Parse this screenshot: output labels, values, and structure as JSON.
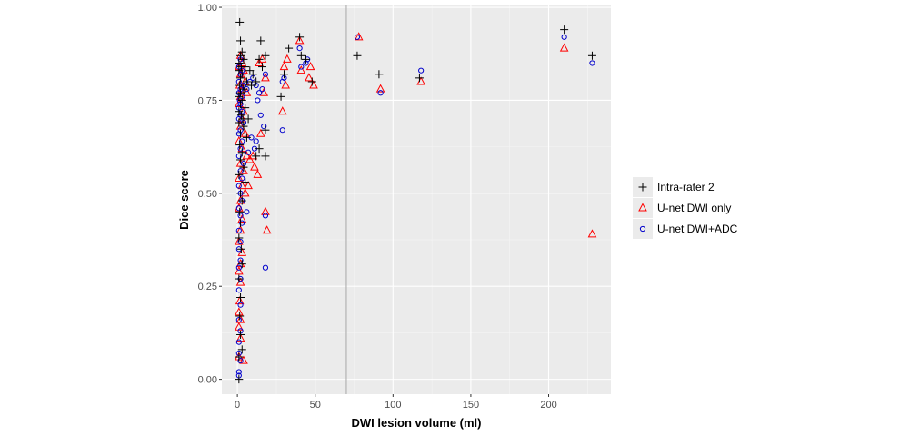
{
  "chart_data": {
    "type": "scatter",
    "title": "",
    "xlabel": "DWI lesion volume (ml)",
    "ylabel": "Dice score",
    "xlim": [
      -10,
      240
    ],
    "ylim": [
      -0.04,
      1.005
    ],
    "xticks": [
      0,
      50,
      100,
      150,
      200
    ],
    "yticks": [
      0.0,
      0.25,
      0.5,
      0.75,
      1.0
    ],
    "xtick_labels": [
      "0",
      "50",
      "100",
      "150",
      "200"
    ],
    "ytick_labels": [
      "0.00",
      "0.25",
      "0.50",
      "0.75",
      "1.00"
    ],
    "grid": true,
    "reference_line_x": 70,
    "legend_position": "right",
    "series": [
      {
        "name": "Intra-rater 2",
        "marker": "plus",
        "color": "#000000",
        "points": [
          [
            1.5,
            0.96
          ],
          [
            2,
            0.91
          ],
          [
            3,
            0.88
          ],
          [
            2,
            0.87
          ],
          [
            4,
            0.86
          ],
          [
            1,
            0.85
          ],
          [
            2.5,
            0.84
          ],
          [
            5,
            0.84
          ],
          [
            1,
            0.83
          ],
          [
            3,
            0.82
          ],
          [
            2,
            0.81
          ],
          [
            6,
            0.8
          ],
          [
            1.5,
            0.79
          ],
          [
            4,
            0.78
          ],
          [
            2,
            0.77
          ],
          [
            1,
            0.76
          ],
          [
            3,
            0.75
          ],
          [
            2,
            0.74
          ],
          [
            5,
            0.73
          ],
          [
            1,
            0.72
          ],
          [
            2.5,
            0.71
          ],
          [
            3.5,
            0.7
          ],
          [
            1,
            0.69
          ],
          [
            4,
            0.68
          ],
          [
            2,
            0.66
          ],
          [
            6,
            0.65
          ],
          [
            1.5,
            0.63
          ],
          [
            3,
            0.61
          ],
          [
            2,
            0.59
          ],
          [
            4,
            0.57
          ],
          [
            1,
            0.55
          ],
          [
            5,
            0.53
          ],
          [
            2,
            0.5
          ],
          [
            3,
            0.48
          ],
          [
            1.5,
            0.45
          ],
          [
            2,
            0.42
          ],
          [
            1,
            0.38
          ],
          [
            2.5,
            0.35
          ],
          [
            3,
            0.31
          ],
          [
            1,
            0.27
          ],
          [
            2,
            0.22
          ],
          [
            1.5,
            0.17
          ],
          [
            2,
            0.12
          ],
          [
            1,
            0.06
          ],
          [
            3,
            0.08
          ],
          [
            1,
            0.0
          ],
          [
            15,
            0.91
          ],
          [
            18,
            0.87
          ],
          [
            14,
            0.86
          ],
          [
            16,
            0.84
          ],
          [
            12,
            0.8
          ],
          [
            18,
            0.67
          ],
          [
            14,
            0.62
          ],
          [
            12,
            0.6
          ],
          [
            18,
            0.6
          ],
          [
            8,
            0.83
          ],
          [
            10,
            0.82
          ],
          [
            9,
            0.79
          ],
          [
            7,
            0.7
          ],
          [
            33,
            0.89
          ],
          [
            30,
            0.82
          ],
          [
            28,
            0.76
          ],
          [
            40,
            0.92
          ],
          [
            44,
            0.86
          ],
          [
            41,
            0.87
          ],
          [
            48,
            0.8
          ],
          [
            77,
            0.87
          ],
          [
            91,
            0.82
          ],
          [
            117,
            0.81
          ],
          [
            210,
            0.94
          ],
          [
            228,
            0.87
          ]
        ]
      },
      {
        "name": "U-net DWI only",
        "marker": "triangle",
        "color": "#ff0000",
        "points": [
          [
            2,
            0.87
          ],
          [
            3,
            0.85
          ],
          [
            1,
            0.84
          ],
          [
            4,
            0.83
          ],
          [
            2,
            0.82
          ],
          [
            5,
            0.8
          ],
          [
            1.5,
            0.79
          ],
          [
            3,
            0.78
          ],
          [
            6,
            0.77
          ],
          [
            2,
            0.76
          ],
          [
            1,
            0.74
          ],
          [
            4,
            0.72
          ],
          [
            3,
            0.7
          ],
          [
            2,
            0.68
          ],
          [
            5,
            0.66
          ],
          [
            1,
            0.64
          ],
          [
            3,
            0.62
          ],
          [
            6,
            0.6
          ],
          [
            2,
            0.58
          ],
          [
            4,
            0.56
          ],
          [
            1,
            0.54
          ],
          [
            3,
            0.52
          ],
          [
            5,
            0.5
          ],
          [
            2,
            0.48
          ],
          [
            1,
            0.46
          ],
          [
            3,
            0.43
          ],
          [
            2,
            0.4
          ],
          [
            1,
            0.37
          ],
          [
            3,
            0.34
          ],
          [
            2,
            0.31
          ],
          [
            1,
            0.29
          ],
          [
            2,
            0.26
          ],
          [
            1.5,
            0.21
          ],
          [
            1,
            0.18
          ],
          [
            2,
            0.16
          ],
          [
            1,
            0.14
          ],
          [
            2,
            0.11
          ],
          [
            1,
            0.06
          ],
          [
            4,
            0.05
          ],
          [
            14,
            0.85
          ],
          [
            16,
            0.86
          ],
          [
            18,
            0.81
          ],
          [
            17,
            0.77
          ],
          [
            15,
            0.66
          ],
          [
            13,
            0.55
          ],
          [
            11,
            0.57
          ],
          [
            10,
            0.6
          ],
          [
            8,
            0.59
          ],
          [
            7,
            0.52
          ],
          [
            18,
            0.45
          ],
          [
            19,
            0.4
          ],
          [
            30,
            0.84
          ],
          [
            29,
            0.72
          ],
          [
            32,
            0.86
          ],
          [
            31,
            0.79
          ],
          [
            40,
            0.91
          ],
          [
            41,
            0.83
          ],
          [
            47,
            0.84
          ],
          [
            46,
            0.81
          ],
          [
            49,
            0.79
          ],
          [
            78,
            0.92
          ],
          [
            92,
            0.78
          ],
          [
            118,
            0.8
          ],
          [
            210,
            0.89
          ],
          [
            228,
            0.39
          ]
        ]
      },
      {
        "name": "U-net DWI+ADC",
        "marker": "circle",
        "color": "#0000cc",
        "points": [
          [
            2,
            0.86
          ],
          [
            1,
            0.84
          ],
          [
            3,
            0.83
          ],
          [
            2,
            0.82
          ],
          [
            1,
            0.8
          ],
          [
            4,
            0.79
          ],
          [
            2,
            0.78
          ],
          [
            1,
            0.77
          ],
          [
            3,
            0.76
          ],
          [
            1.5,
            0.75
          ],
          [
            2,
            0.74
          ],
          [
            1,
            0.73
          ],
          [
            3,
            0.72
          ],
          [
            2,
            0.71
          ],
          [
            1,
            0.7
          ],
          [
            4,
            0.69
          ],
          [
            2,
            0.67
          ],
          [
            1,
            0.66
          ],
          [
            3,
            0.64
          ],
          [
            2,
            0.62
          ],
          [
            1,
            0.6
          ],
          [
            4,
            0.58
          ],
          [
            2,
            0.56
          ],
          [
            3,
            0.54
          ],
          [
            1,
            0.52
          ],
          [
            2,
            0.5
          ],
          [
            3,
            0.48
          ],
          [
            1,
            0.46
          ],
          [
            2,
            0.44
          ],
          [
            3,
            0.42
          ],
          [
            1,
            0.4
          ],
          [
            2,
            0.37
          ],
          [
            1,
            0.35
          ],
          [
            2,
            0.32
          ],
          [
            1,
            0.3
          ],
          [
            2,
            0.27
          ],
          [
            1,
            0.24
          ],
          [
            2,
            0.2
          ],
          [
            1,
            0.16
          ],
          [
            2,
            0.13
          ],
          [
            1,
            0.1
          ],
          [
            1,
            0.07
          ],
          [
            2,
            0.05
          ],
          [
            1,
            0.02
          ],
          [
            1,
            0.01
          ],
          [
            6,
            0.78
          ],
          [
            8,
            0.8
          ],
          [
            10,
            0.81
          ],
          [
            12,
            0.79
          ],
          [
            14,
            0.77
          ],
          [
            16,
            0.78
          ],
          [
            18,
            0.82
          ],
          [
            13,
            0.75
          ],
          [
            15,
            0.71
          ],
          [
            17,
            0.68
          ],
          [
            9,
            0.65
          ],
          [
            11,
            0.62
          ],
          [
            7,
            0.61
          ],
          [
            12,
            0.64
          ],
          [
            18,
            0.44
          ],
          [
            18,
            0.3
          ],
          [
            6,
            0.45
          ],
          [
            29,
            0.8
          ],
          [
            30,
            0.81
          ],
          [
            29,
            0.67
          ],
          [
            40,
            0.89
          ],
          [
            41,
            0.84
          ],
          [
            45,
            0.86
          ],
          [
            44,
            0.85
          ],
          [
            77,
            0.92
          ],
          [
            92,
            0.77
          ],
          [
            118,
            0.83
          ],
          [
            210,
            0.92
          ],
          [
            228,
            0.85
          ]
        ]
      }
    ]
  }
}
